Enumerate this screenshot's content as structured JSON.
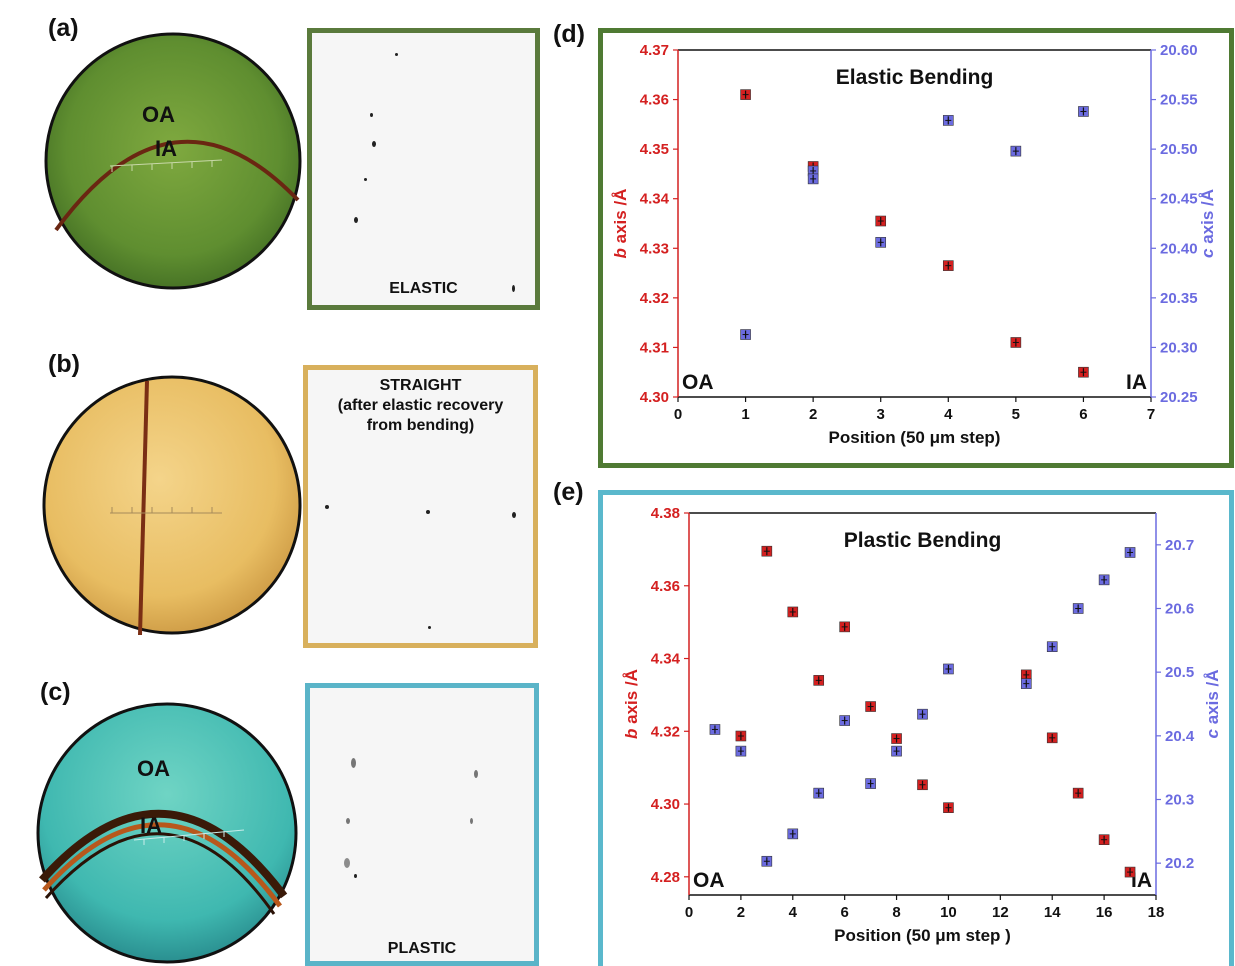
{
  "panels": {
    "a": {
      "label": "(a)",
      "oa": "OA",
      "ia": "IA",
      "xrd_caption": "ELASTIC",
      "frame_color": "#5a7a3c"
    },
    "b": {
      "label": "(b)",
      "xrd_caption": "STRAIGHT\n(after elastic  recovery\nfrom bending)",
      "frame_color": "#d8b05c"
    },
    "c": {
      "label": "(c)",
      "oa": "OA",
      "ia": "IA",
      "xrd_caption": "PLASTIC",
      "frame_color": "#5ab4c8"
    },
    "d": {
      "label": "(d)",
      "frame_color": "#4f7a33"
    },
    "e": {
      "label": "(e)",
      "frame_color": "#5ab8cc"
    }
  },
  "colors": {
    "b_axis": "#d42020",
    "c_axis": "#6b6be0"
  },
  "chart_data": [
    {
      "type": "scatter",
      "title": "Elastic Bending",
      "xlabel": "Position (50 μm step)",
      "ylabel_left_italic": "b",
      "ylabel_left_rest": " axis /Å",
      "ylabel_right_italic": "c",
      "ylabel_right_rest": " axis /Å",
      "xlim": [
        0,
        7
      ],
      "xticks": [
        0,
        1,
        2,
        3,
        4,
        5,
        6,
        7
      ],
      "ylim_left": [
        4.3,
        4.37
      ],
      "yticks_left": [
        "4.30",
        "4.31",
        "4.32",
        "4.33",
        "4.34",
        "4.35",
        "4.36",
        "4.37"
      ],
      "ylim_right": [
        20.25,
        20.6
      ],
      "yticks_right": [
        "20.25",
        "20.30",
        "20.35",
        "20.40",
        "20.45",
        "20.50",
        "20.55",
        "20.60"
      ],
      "corner_left": "OA",
      "corner_right": "IA",
      "series": [
        {
          "axis": "left",
          "x": [
            1,
            2,
            3,
            4,
            5,
            6
          ],
          "y": [
            4.361,
            4.3465,
            4.3355,
            4.3265,
            4.311,
            4.305
          ]
        },
        {
          "axis": "right",
          "x": [
            1,
            2,
            2,
            3,
            4,
            5,
            6
          ],
          "y": [
            20.313,
            20.478,
            20.47,
            20.406,
            20.529,
            20.498,
            20.538
          ]
        }
      ]
    },
    {
      "type": "scatter",
      "title": "Plastic Bending",
      "xlabel": "Position (50 μm step )",
      "ylabel_left_italic": "b",
      "ylabel_left_rest": " axis /Å",
      "ylabel_right_italic": "c",
      "ylabel_right_rest": " axis /Å",
      "xlim": [
        0,
        18
      ],
      "xticks": [
        0,
        2,
        4,
        6,
        8,
        10,
        12,
        14,
        16,
        18
      ],
      "ylim_left": [
        4.275,
        4.38
      ],
      "yticks_left": [
        "4.28",
        "4.30",
        "4.32",
        "4.34",
        "4.36",
        "4.38"
      ],
      "yticks_left_values": [
        4.28,
        4.3,
        4.32,
        4.34,
        4.36,
        4.38
      ],
      "ylim_right": [
        20.15,
        20.75
      ],
      "yticks_right": [
        "20.2",
        "20.3",
        "20.4",
        "20.5",
        "20.6",
        "20.7"
      ],
      "yticks_right_values": [
        20.2,
        20.3,
        20.4,
        20.5,
        20.6,
        20.7
      ],
      "corner_left": "OA",
      "corner_right": "IA",
      "series": [
        {
          "axis": "left",
          "x": [
            2,
            3,
            4,
            5,
            6,
            7,
            8,
            9,
            10,
            13,
            14,
            15,
            16,
            17
          ],
          "y": [
            4.3187,
            4.3695,
            4.3528,
            4.334,
            4.3487,
            4.3268,
            4.318,
            4.3053,
            4.299,
            4.3355,
            4.3182,
            4.303,
            4.2902,
            4.2813
          ]
        },
        {
          "axis": "right",
          "x": [
            1,
            2,
            3,
            4,
            5,
            6,
            7,
            8,
            9,
            10,
            13,
            14,
            15,
            16,
            17
          ],
          "y": [
            20.41,
            20.376,
            20.203,
            20.246,
            20.31,
            20.424,
            20.325,
            20.376,
            20.434,
            20.505,
            20.482,
            20.54,
            20.6,
            20.645,
            20.688
          ]
        }
      ]
    }
  ]
}
